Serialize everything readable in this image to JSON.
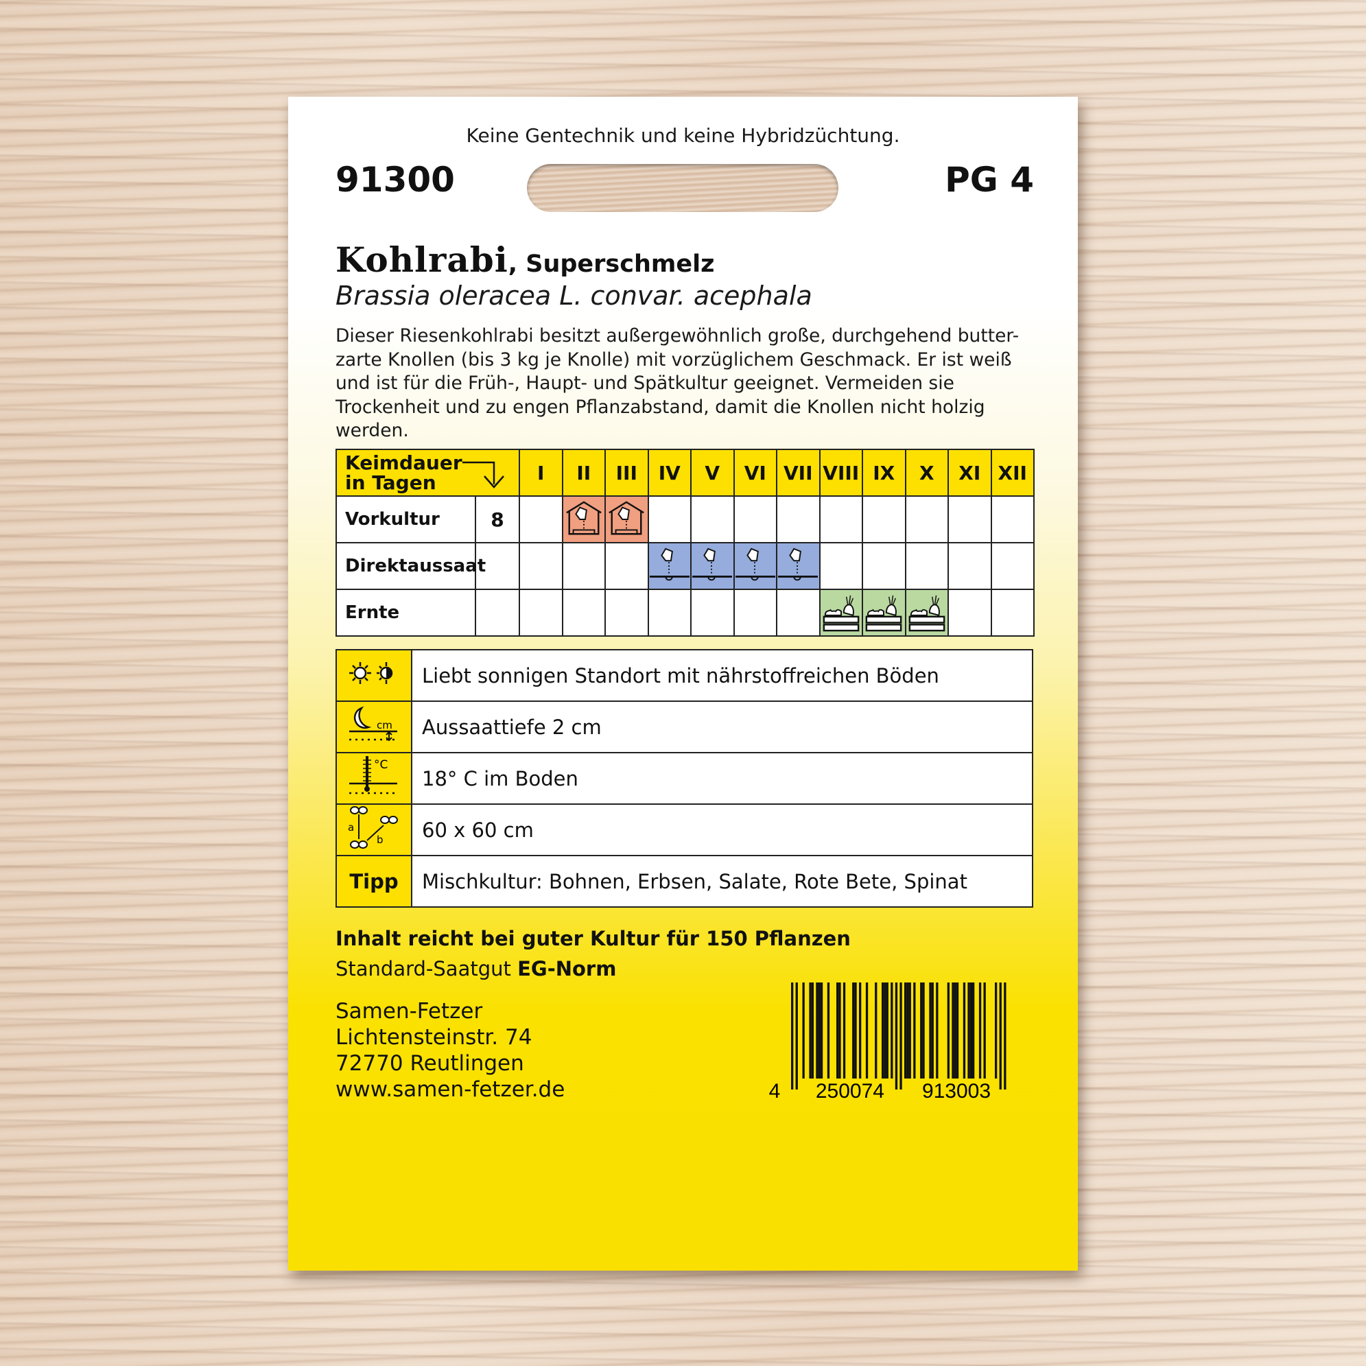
{
  "packet": {
    "top_note": "Keine Gentechnik und keine Hybridzüchtung.",
    "article_number": "91300",
    "price_group": "PG 4",
    "title": "Kohlrabi",
    "variety": ", Superschmelz",
    "latin_name": "Brassia oleracea L. convar. acephala",
    "description": "Dieser Riesenkohlrabi besitzt außergewöhnlich große, durchgehend butter-zarte Knollen (bis 3 kg je Knolle) mit vorzüglichem Geschmack. Er ist weiß und ist für die Früh-, Haupt- und Spätkultur geeignet. Vermeiden sie Trockenheit und zu engen Pflanzabstand, damit die Knollen nicht holzig werden."
  },
  "calendar": {
    "header_line1": "Keimdauer",
    "header_line2": "in Tagen",
    "months": [
      "I",
      "II",
      "III",
      "IV",
      "V",
      "VI",
      "VII",
      "VIII",
      "IX",
      "X",
      "XI",
      "XII"
    ],
    "rows": [
      {
        "label": "Vorkultur",
        "days": "8",
        "months_active": [
          2,
          3
        ],
        "color": "#f09f80",
        "icon": "greenhouse-seed-icon"
      },
      {
        "label": "Direktaussaat",
        "days": "",
        "months_active": [
          4,
          5,
          6,
          7
        ],
        "color": "#95acdd",
        "icon": "direct-sowing-icon"
      },
      {
        "label": "Ernte",
        "days": "",
        "months_active": [
          8,
          9,
          10
        ],
        "color": "#b9d9a1",
        "icon": "harvest-crate-icon"
      }
    ]
  },
  "info": [
    {
      "icon": "sun-partial-shade-icon",
      "text": "Liebt sonnigen Standort mit nährstoffreichen Böden"
    },
    {
      "icon": "sowing-depth-icon",
      "text": "Aussaattiefe 2 cm"
    },
    {
      "icon": "thermometer-icon",
      "text": "18° C im Boden"
    },
    {
      "icon": "plant-spacing-icon",
      "text": "60 x 60 cm"
    },
    {
      "label": "Tipp",
      "text": "Mischkultur: Bohnen, Erbsen, Salate, Rote Bete, Spinat"
    }
  ],
  "footer": {
    "contents": "Inhalt reicht bei guter Kultur für 150 Pflanzen",
    "standard_prefix": "Standard-Saatgut ",
    "standard_bold": "EG-Norm",
    "address": [
      "Samen-Fetzer",
      "Lichtensteinstr. 74",
      "72770 Reutlingen",
      "www.samen-fetzer.de"
    ]
  },
  "barcode": {
    "first": "4",
    "left": "250074",
    "right": "913003"
  },
  "colors": {
    "yellow": "#fde000",
    "orange": "#f09f80",
    "blue": "#95acdd",
    "green": "#b9d9a1"
  }
}
